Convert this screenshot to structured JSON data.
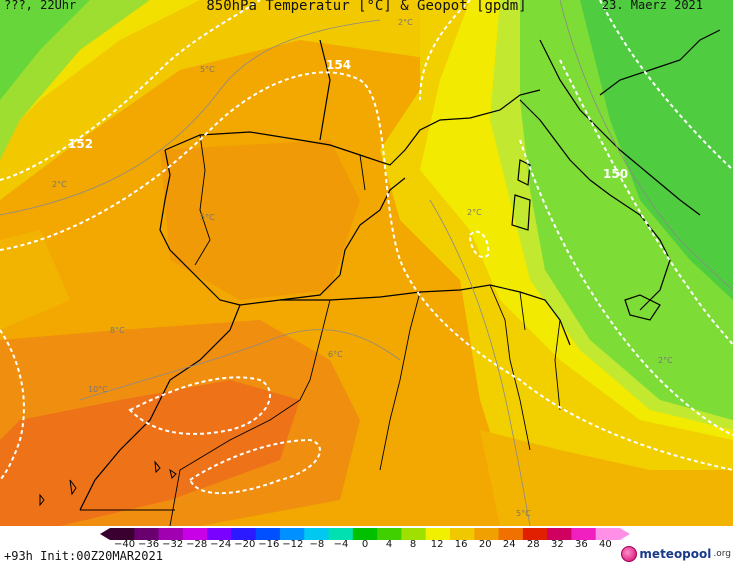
{
  "header": {
    "left": "???, 22Uhr",
    "title": "850hPa Temperatur [°C] & Geopot [gpdm]",
    "date": "23. Maerz 2021"
  },
  "footer": {
    "run": "+93h  Init:00Z20MAR2021",
    "brand": "meteopool",
    "brand_suffix": ".org"
  },
  "colorbar": {
    "ticks": [
      "−40",
      "−36",
      "−32",
      "−28",
      "−24",
      "−20",
      "−16",
      "−12",
      "−8",
      "−4",
      "0",
      "4",
      "8",
      "12",
      "16",
      "20",
      "24",
      "28",
      "32",
      "36",
      "40"
    ],
    "colors": [
      "#3a0030",
      "#6a0070",
      "#a000b0",
      "#c800e8",
      "#7a00ff",
      "#2b1aff",
      "#0050ff",
      "#0090ff",
      "#00c8f0",
      "#00e0b0",
      "#00c000",
      "#40d000",
      "#a0e000",
      "#f0f000",
      "#f0c800",
      "#f0a000",
      "#f07000",
      "#e02000",
      "#d00060",
      "#f020c0",
      "#ff90e8"
    ]
  },
  "map_labels": {
    "geo_154": "154",
    "geo_152": "152",
    "geo_150": "150",
    "t_2c_top": "2°C",
    "t_5c": "5°C",
    "t_2c_left": "2°C",
    "t_2c_mid": "2°C",
    "t_5c_iberia": "5°C",
    "t_8c": "8°C",
    "t_6c": "6°C",
    "t_10c": "10°C",
    "t_2c_right": "2°C",
    "t_5c_bottom": "5°C"
  },
  "colors": {
    "green_dark": "#3cc83c",
    "green": "#66d63a",
    "yellow_green": "#b8e632",
    "yellow": "#f2e600",
    "yellow_orange": "#f2c800",
    "orange": "#f2a800",
    "orange_deep": "#f08e10",
    "red_orange": "#ee7218",
    "contour_white": "#ffffff",
    "coast": "#000000"
  }
}
